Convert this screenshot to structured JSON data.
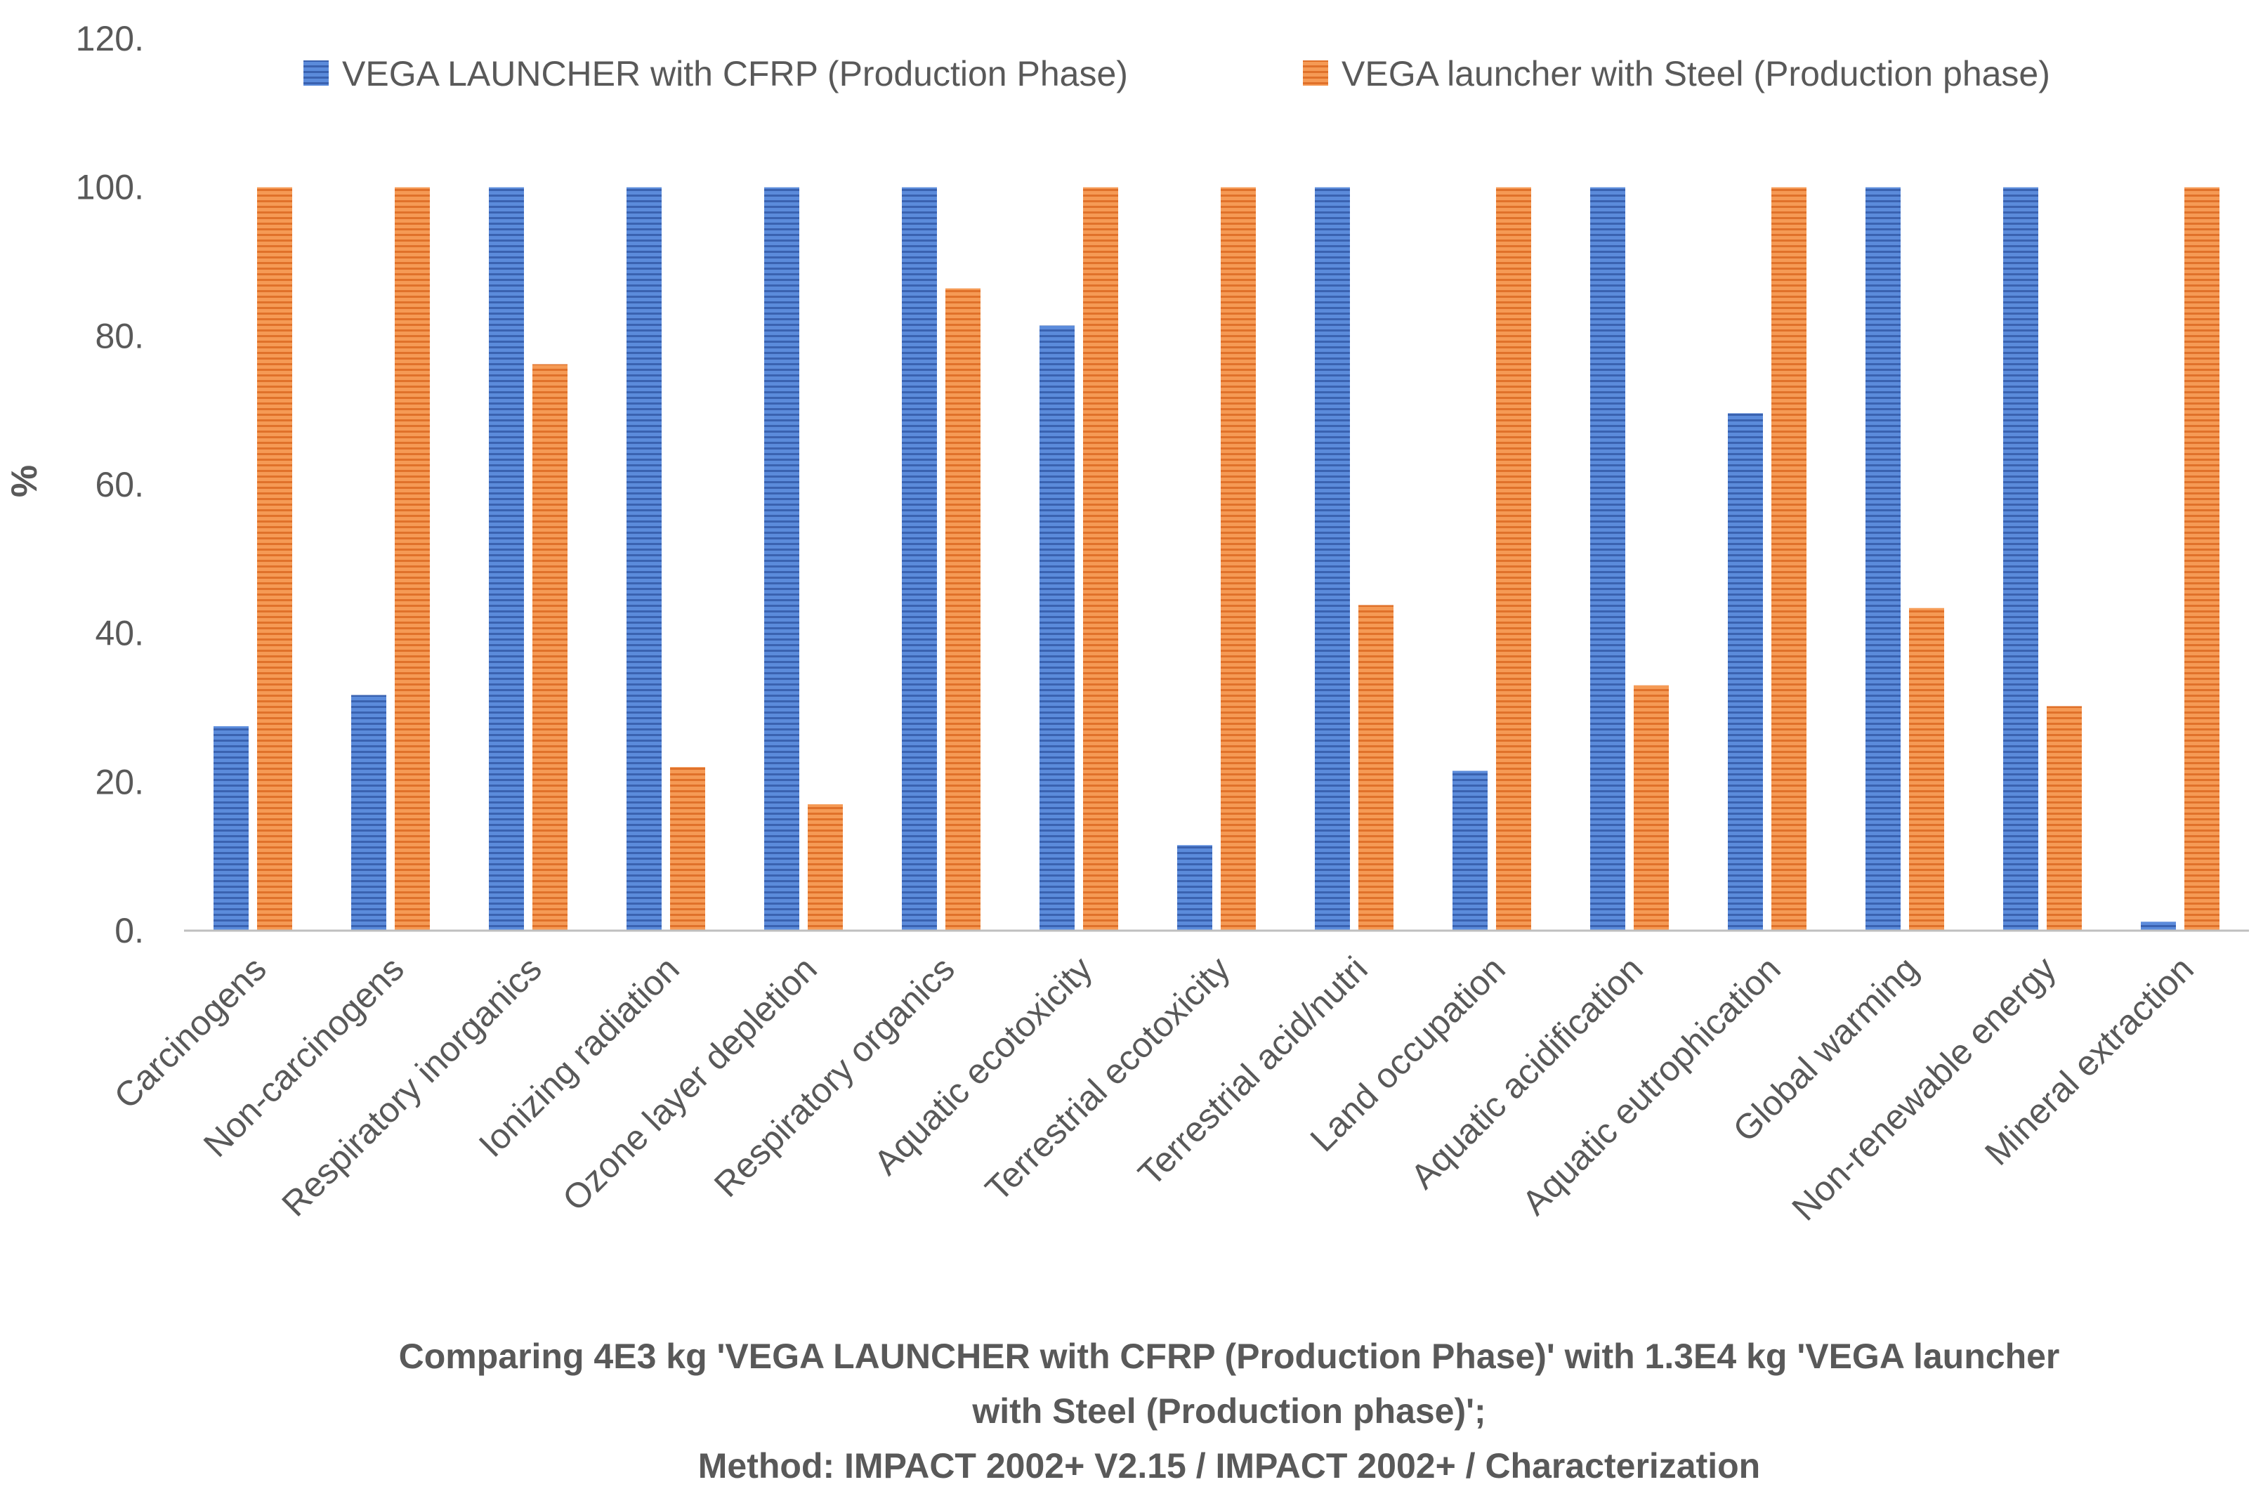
{
  "chart_data": {
    "type": "bar",
    "ylabel": "%",
    "ylim": [
      0,
      120
    ],
    "yticks": [
      "0.",
      "20.",
      "40.",
      "60.",
      "80.",
      "100.",
      "120."
    ],
    "grid": false,
    "legend_position": "top",
    "categories": [
      "Carcinogens",
      "Non-carcinogens",
      "Respiratory inorganics",
      "Ionizing radiation",
      "Ozone layer depletion",
      "Respiratory organics",
      "Aquatic ecotoxicity",
      "Terrestrial ecotoxicity",
      "Terrestrial acid/nutri",
      "Land occupation",
      "Aquatic acidification",
      "Aquatic eutrophication",
      "Global warming",
      "Non-renewable energy",
      "Mineral extraction"
    ],
    "series": [
      {
        "name": "VEGA LAUNCHER with CFRP (Production Phase)",
        "color": "#4472C4",
        "values": [
          27.5,
          31.7,
          100,
          100,
          100,
          100,
          81.4,
          11.5,
          100,
          21.5,
          100,
          69.6,
          100,
          100,
          1.2
        ]
      },
      {
        "name": "VEGA launcher with Steel (Production phase)",
        "color": "#ED7D31",
        "values": [
          100,
          100,
          76.2,
          22,
          17,
          86.4,
          100,
          100,
          43.8,
          100,
          33,
          100,
          43.4,
          30.2,
          100
        ]
      }
    ],
    "caption": [
      "Comparing 4E3 kg 'VEGA LAUNCHER with CFRP (Production Phase)' with 1.3E4 kg 'VEGA launcher",
      "with Steel (Production phase)';",
      "Method: IMPACT 2002+ V2.15 / IMPACT 2002+ / Characterization"
    ]
  }
}
